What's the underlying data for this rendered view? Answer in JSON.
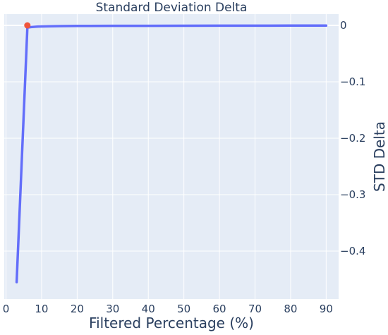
{
  "chart_data": {
    "type": "line",
    "title": "Standard Deviation Delta",
    "xlabel": "Filtered Percentage (%)",
    "ylabel": "STD Delta",
    "xlim": [
      -0.5,
      93.5
    ],
    "ylim": [
      -0.485,
      0.02
    ],
    "x_ticks": [
      0,
      10,
      20,
      30,
      40,
      50,
      60,
      70,
      80,
      90
    ],
    "x_tick_labels": [
      "0",
      "10",
      "20",
      "30",
      "40",
      "50",
      "60",
      "70",
      "80",
      "90"
    ],
    "y_ticks": [
      0,
      -0.1,
      -0.2,
      -0.3,
      -0.4
    ],
    "y_tick_labels": [
      "0",
      "−0.1",
      "−0.2",
      "−0.3",
      "−0.4"
    ],
    "y_axis_side": "right",
    "grid": true,
    "series": [
      {
        "color": "#636efa",
        "x": [
          3,
          6,
          7,
          9,
          12,
          15,
          20,
          30,
          40,
          50,
          60,
          70,
          80,
          90
        ],
        "y": [
          -0.455,
          -0.004,
          -0.003,
          -0.002,
          -0.0015,
          -0.0012,
          -0.001,
          -0.0008,
          -0.0007,
          -0.0006,
          -0.0005,
          -0.0005,
          -0.0004,
          -0.0004
        ]
      }
    ],
    "highlight_point": {
      "x": 6,
      "y": 0,
      "color": "#ef553b"
    },
    "colors": {
      "plot_bg": "#e5ecf6",
      "grid": "#ffffff",
      "text": "#2a3f5f"
    }
  }
}
